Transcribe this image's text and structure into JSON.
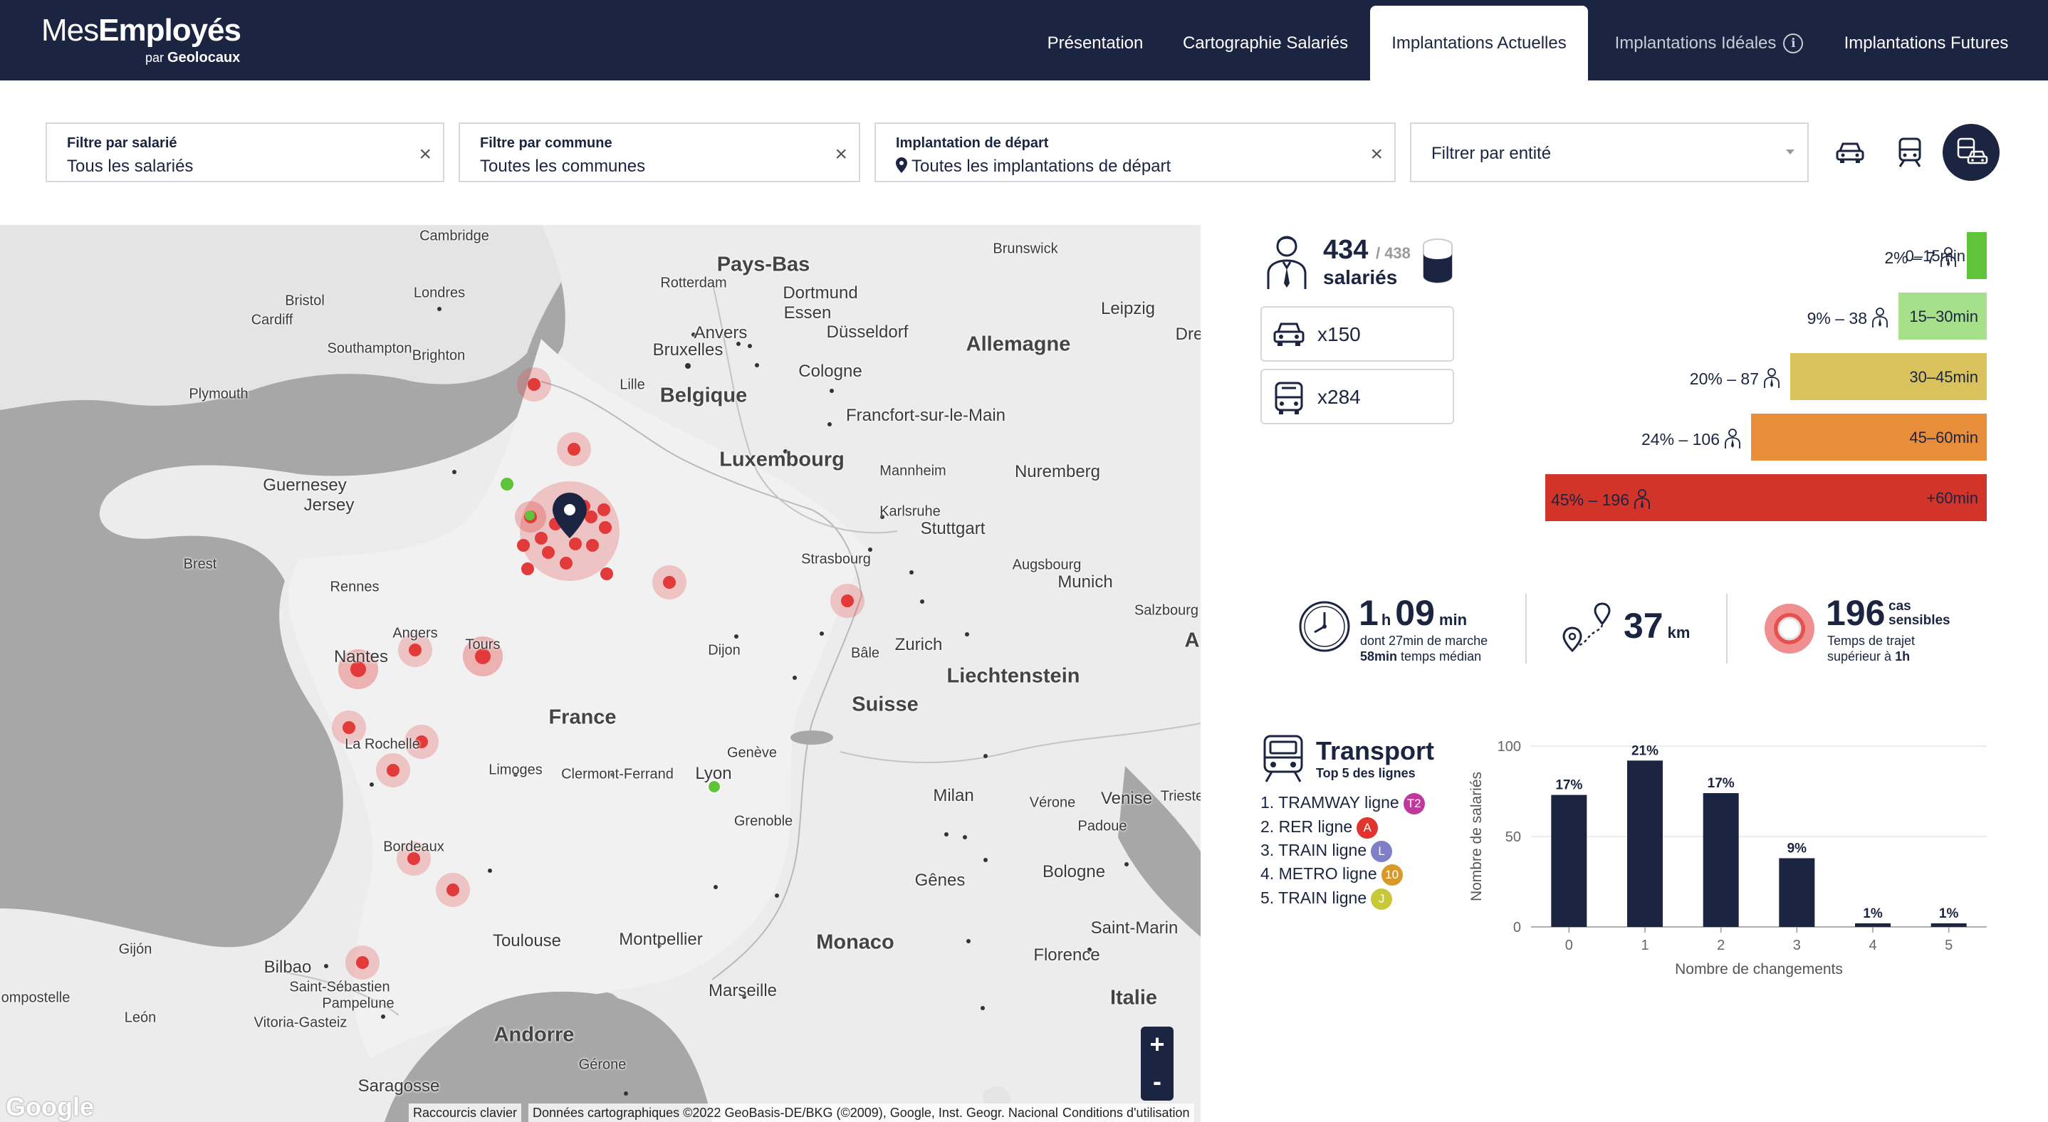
{
  "header": {
    "logo_main_a": "Mes",
    "logo_main_b": "Employés",
    "logo_sub_a": "par ",
    "logo_sub_b": "Geolocaux",
    "tabs": [
      {
        "label": "Présentation"
      },
      {
        "label": "Cartographie Salariés"
      },
      {
        "label": "Implantations Actuelles"
      },
      {
        "label": "Implantations Idéales"
      },
      {
        "label": "Implantations Futures"
      }
    ],
    "active_tab": "Implantations Actuelles"
  },
  "filters": {
    "employee": {
      "label": "Filtre par salarié",
      "value": "Tous les salariés"
    },
    "commune": {
      "label": "Filtre par commune",
      "value": "Toutes les communes"
    },
    "start": {
      "label": "Implantation de départ",
      "value": "Toutes les implantations de départ"
    },
    "entity": {
      "placeholder": "Filtrer par entité"
    },
    "clear_glyph": "×"
  },
  "map": {
    "labels": [
      {
        "text": "Pays-Bas",
        "size": "big"
      },
      {
        "text": "Belgique",
        "size": "big"
      },
      {
        "text": "Luxembourg",
        "size": "big"
      },
      {
        "text": "Allemagne",
        "size": "big"
      },
      {
        "text": "France",
        "size": "big"
      },
      {
        "text": "Suisse",
        "size": "big"
      },
      {
        "text": "Liechtenstein",
        "size": "big"
      },
      {
        "text": "Monaco",
        "size": "big"
      },
      {
        "text": "Andorre",
        "size": "big"
      },
      {
        "text": "Italie",
        "size": "big"
      },
      {
        "text": "Guernesey",
        "size": "mid"
      },
      {
        "text": "Jersey",
        "size": "mid"
      },
      {
        "text": "Saint-Marin",
        "size": "mid"
      },
      {
        "text": "Cambridge"
      },
      {
        "text": "Londres"
      },
      {
        "text": "Bristol"
      },
      {
        "text": "Cardiff"
      },
      {
        "text": "Southampton"
      },
      {
        "text": "Brighton"
      },
      {
        "text": "Plymouth"
      },
      {
        "text": "Brest"
      },
      {
        "text": "Rennes"
      },
      {
        "text": "Nantes"
      },
      {
        "text": "Angers"
      },
      {
        "text": "Tours"
      },
      {
        "text": "La Rochelle"
      },
      {
        "text": "Limoges"
      },
      {
        "text": "Clermont-Ferrand"
      },
      {
        "text": "Bordeaux"
      },
      {
        "text": "Toulouse"
      },
      {
        "text": "Montpellier"
      },
      {
        "text": "Marseille"
      },
      {
        "text": "Lyon"
      },
      {
        "text": "Genève"
      },
      {
        "text": "Grenoble"
      },
      {
        "text": "Dijon"
      },
      {
        "text": "Lille"
      },
      {
        "text": "Rotterdam"
      },
      {
        "text": "Anvers"
      },
      {
        "text": "Bruxelles"
      },
      {
        "text": "Essen"
      },
      {
        "text": "Dortmund"
      },
      {
        "text": "Düsseldorf"
      },
      {
        "text": "Cologne"
      },
      {
        "text": "Francfort-sur-le-Main"
      },
      {
        "text": "Mannheim"
      },
      {
        "text": "Karlsruhe"
      },
      {
        "text": "Stuttgart"
      },
      {
        "text": "Strasbourg"
      },
      {
        "text": "Nuremberg"
      },
      {
        "text": "Augsbourg"
      },
      {
        "text": "Munich"
      },
      {
        "text": "Salzbourg"
      },
      {
        "text": "Zurich"
      },
      {
        "text": "Bâle"
      },
      {
        "text": "Milan"
      },
      {
        "text": "Vérone"
      },
      {
        "text": "Venise"
      },
      {
        "text": "Trieste"
      },
      {
        "text": "Padoue"
      },
      {
        "text": "Bologne"
      },
      {
        "text": "Gênes"
      },
      {
        "text": "Florence"
      },
      {
        "text": "Leipzig"
      },
      {
        "text": "Brunswick"
      },
      {
        "text": "Bilbao"
      },
      {
        "text": "Saint-Sébastien"
      },
      {
        "text": "Pampelune"
      },
      {
        "text": "Vitoria-Gasteiz"
      },
      {
        "text": "León"
      },
      {
        "text": "Gijón"
      },
      {
        "text": "Saragosse"
      },
      {
        "text": "Gérone"
      },
      {
        "text": "ompostelle"
      },
      {
        "text": "Dre"
      },
      {
        "text": "A"
      }
    ],
    "zoom_in": "+",
    "zoom_out": "-",
    "google": "Google",
    "attrib_shortcuts": "Raccourcis clavier",
    "attrib_data": "Données cartographiques ©2022 GeoBasis-DE/BKG (©2009), Google, Inst. Geogr. Nacional",
    "attrib_terms": "Conditions d'utilisation"
  },
  "summary": {
    "count": "434",
    "total": "/ 438",
    "label": "salariés",
    "car": "x150",
    "transit": "x284"
  },
  "bands": [
    {
      "pct": "2% – 7",
      "time": "0–15min",
      "color": "#5fc43a"
    },
    {
      "pct": "9% – 38",
      "time": "15–30min",
      "color": "#a6e08a"
    },
    {
      "pct": "20% – 87",
      "time": "30–45min",
      "color": "#d9c25c"
    },
    {
      "pct": "24% – 106",
      "time": "45–60min",
      "color": "#e88d3a"
    },
    {
      "pct": "45% – 196",
      "time": "+60min",
      "color": "#d3342a"
    }
  ],
  "stats": {
    "time_h": "1",
    "time_h_unit": "h",
    "time_min": "09",
    "time_min_unit": "min",
    "time_sub1": "dont 27min de marche",
    "time_sub2_bold": "58min",
    "time_sub2": " temps médian",
    "dist": "37",
    "dist_unit": "km",
    "sensitive": "196",
    "sensitive_unit1": "cas",
    "sensitive_unit2": "sensibles",
    "sensitive_sub1": "Temps de trajet",
    "sensitive_sub2_a": "supérieur à ",
    "sensitive_sub2_b": "1h"
  },
  "transport": {
    "title": "Transport",
    "subtitle": "Top 5 des lignes",
    "lines": [
      {
        "text": "1. TRAMWAY ligne",
        "badge": "T2",
        "color": "#c0399a"
      },
      {
        "text": "2. RER ligne",
        "badge": "A",
        "color": "#e0342c"
      },
      {
        "text": "3. TRAIN ligne",
        "badge": "L",
        "color": "#7f7fc9"
      },
      {
        "text": "4. METRO ligne",
        "badge": "10",
        "color": "#d79a28"
      },
      {
        "text": "5. TRAIN ligne",
        "badge": "J",
        "color": "#c8c83a"
      }
    ]
  },
  "chart_data": {
    "type": "bar",
    "categories": [
      "0",
      "1",
      "2",
      "3",
      "4",
      "5"
    ],
    "values": [
      73,
      92,
      74,
      38,
      2,
      2
    ],
    "labels": [
      "17%",
      "21%",
      "17%",
      "9%",
      "1%",
      "1%"
    ],
    "ylim": [
      0,
      100
    ],
    "yticks": [
      "0",
      "50",
      "100"
    ],
    "xlabel": "Nombre de changements",
    "ylabel": "Nombre de salariés",
    "bar_color": "#1b2440"
  }
}
